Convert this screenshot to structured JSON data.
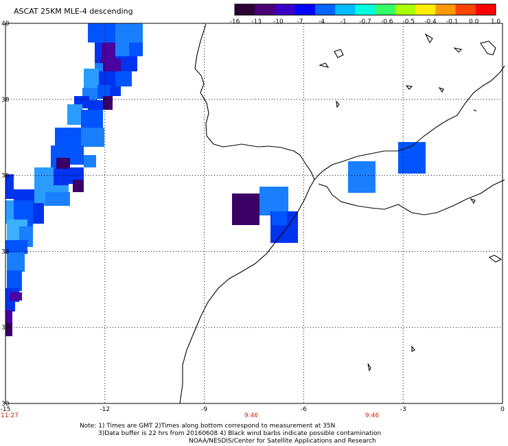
{
  "title": "ASCAT 25KM MLE-4 descending",
  "colorbar": {
    "labels": [
      "-16",
      "-13",
      "-10",
      "-7",
      "-4",
      "-1",
      "-0.7",
      "-0.6",
      "-0.5",
      "-0.4",
      "-0.1",
      "0.0",
      "1.0"
    ],
    "colors": [
      "#2a0033",
      "#4a0077",
      "#3a00c8",
      "#0000ff",
      "#0066ff",
      "#00bbff",
      "#00ffdd",
      "#33ff66",
      "#aaff00",
      "#ffee00",
      "#ff9900",
      "#ff4400",
      "#ff0000"
    ]
  },
  "map": {
    "lon_range": [
      -15,
      0
    ],
    "lat_range": [
      30,
      40
    ],
    "lon_labels": [
      "-15",
      "-12",
      "-9",
      "-6",
      "-3",
      "0"
    ],
    "lat_labels": [
      "40",
      "38",
      "36",
      "34",
      "32",
      "30"
    ],
    "grid_color": "#000000",
    "cell_colors": {
      "deep_purple": "#3a0066",
      "purple": "#4b00a0",
      "dark_blue": "#1a0ccc",
      "blue": "#0033ee",
      "mid_blue": "#0055ff",
      "light_blue": "#1a7fff",
      "sky": "#2b9cff",
      "cyan_blue": "#3ab0ff"
    }
  },
  "times": [
    "11:27",
    "9:46",
    "9:46"
  ],
  "notes": {
    "line1": "Note: 1) Times are GMT 2)Times along bottom correspond to measurement at 35N",
    "line2": "3)Data buffer is 22 hrs from 20160608 4) Black wind barbs indicate possible contamination",
    "line3": "NOAA/NESDIS/Center for Satellite Applications and Research"
  }
}
